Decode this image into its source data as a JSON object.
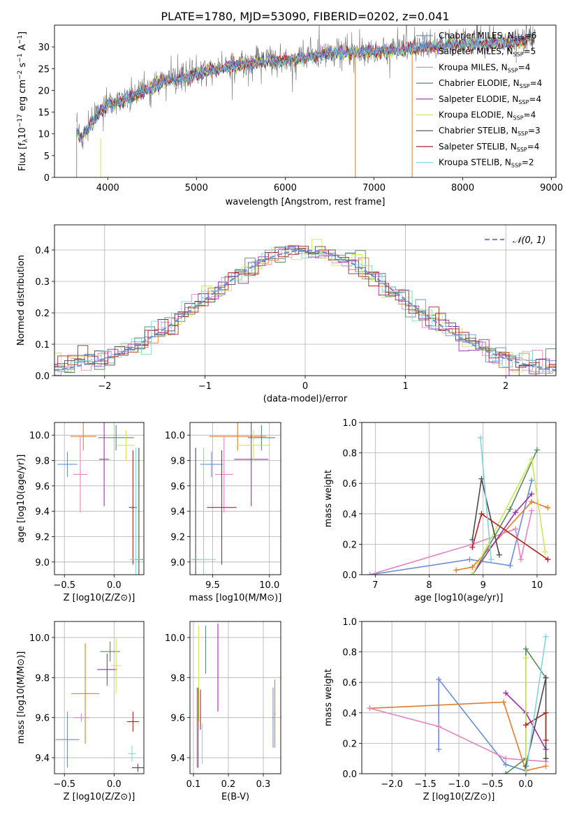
{
  "figure_title": "PLATE=1780, MJD=53090, FIBERID=0202, z=0.041",
  "colors": [
    "#6b8ed6",
    "#e07d2a",
    "#e284c0",
    "#5a8a62",
    "#9b2fae",
    "#cfe85a",
    "#4a4a4a",
    "#b22222",
    "#7fd6dc"
  ],
  "chart_data": [
    {
      "id": "spectrum",
      "type": "line",
      "title": "PLATE=1780, MJD=53090, FIBERID=0202, z=0.041",
      "xlabel": "wavelength [Angstrom, rest frame]",
      "ylabel": "Flux [f",
      "xlim": [
        3400,
        9050
      ],
      "ylim": [
        0,
        35
      ],
      "xticks": [
        "4000",
        "5000",
        "6000",
        "7000",
        "8000",
        "9000"
      ],
      "yticks": [
        "0",
        "5",
        "10",
        "15",
        "20",
        "25",
        "30"
      ],
      "legend_loc": "upper right",
      "legend": [
        {
          "pre": "Chabrier MILES, N",
          "post": "=6"
        },
        {
          "pre": "Salpeter MILES, N",
          "post": "=5"
        },
        {
          "pre": "Kroupa MILES, N",
          "post": "=4"
        },
        {
          "pre": "Chabrier ELODIE, N",
          "post": "=4"
        },
        {
          "pre": "Salpeter ELODIE, N",
          "post": "=4"
        },
        {
          "pre": "Kroupa ELODIE, N",
          "post": "=4"
        },
        {
          "pre": "Chabrier STELIB, N",
          "post": "=3"
        },
        {
          "pre": "Salpeter STELIB, N",
          "post": "=4"
        },
        {
          "pre": "Kroupa STELIB, N",
          "post": "=2"
        }
      ],
      "continuum": [
        [
          3650,
          11
        ],
        [
          3700,
          9
        ],
        [
          3800,
          12
        ],
        [
          3900,
          15
        ],
        [
          4000,
          17
        ],
        [
          4200,
          18
        ],
        [
          4400,
          20
        ],
        [
          4600,
          22
        ],
        [
          4800,
          23
        ],
        [
          5000,
          24
        ],
        [
          5200,
          25
        ],
        [
          5500,
          26
        ],
        [
          5800,
          27
        ],
        [
          6000,
          27
        ],
        [
          6300,
          28
        ],
        [
          6600,
          29
        ],
        [
          7000,
          29
        ],
        [
          7500,
          30
        ],
        [
          8000,
          31
        ],
        [
          8500,
          31
        ],
        [
          8800,
          32
        ]
      ]
    },
    {
      "id": "residuals",
      "type": "histogram",
      "xlabel": "(data-model)/error",
      "ylabel": "Normed distribution",
      "xlim": [
        -2.5,
        2.5
      ],
      "ylim": [
        0,
        0.48
      ],
      "xticks": [
        "−2",
        "−1",
        "0",
        "1",
        "2"
      ],
      "yticks": [
        "0.0",
        "0.1",
        "0.2",
        "0.3",
        "0.4"
      ],
      "legend": "𝒩(0, 1)",
      "legend_loc": "upper right",
      "bin_width": 0.1
    },
    {
      "id": "z-age",
      "type": "errorbar",
      "xlabel": "Z [log10(Z/Z⊙)]",
      "ylabel": "age [log10(age/yr)]",
      "xlim": [
        -0.6,
        0.3
      ],
      "ylim": [
        8.9,
        10.1
      ],
      "xticks": [
        "−0.5",
        "0.0"
      ],
      "yticks": [
        "9.0",
        "9.2",
        "9.4",
        "9.6",
        "9.8",
        "10.0"
      ],
      "points": [
        {
          "x": -0.47,
          "xerr": 0.1,
          "y": 9.77,
          "yerr": 0.1
        },
        {
          "x": -0.31,
          "xerr": 0.13,
          "y": 9.99,
          "yerr": 0.11
        },
        {
          "x": -0.34,
          "xerr": 0.07,
          "y": 9.69,
          "yerr": 0.3
        },
        {
          "x": 0.02,
          "xerr": 0.18,
          "y": 9.98,
          "yerr": 0.1
        },
        {
          "x": -0.1,
          "xerr": 0.05,
          "y": 9.81,
          "yerr": 0.37
        },
        {
          "x": 0.12,
          "xerr": 0.09,
          "y": 9.92,
          "yerr": 0.12
        },
        {
          "x": 0.25,
          "xerr": 0.04,
          "y": 9.02,
          "yerr": 0.88
        },
        {
          "x": 0.19,
          "xerr": 0.04,
          "y": 9.43,
          "yerr": 0.45
        },
        {
          "x": 0.22,
          "xerr": 0.06,
          "y": 9.02,
          "yerr": 0.88
        }
      ]
    },
    {
      "id": "mass-age",
      "type": "errorbar",
      "xlabel": "mass [log10(M/M⊙)]",
      "ylabel": "",
      "xlim": [
        9.3,
        10.1
      ],
      "ylim": [
        8.9,
        10.1
      ],
      "xticks": [
        "9.5",
        "10.0"
      ],
      "yticks": [
        "9.0",
        "9.2",
        "9.4",
        "9.6",
        "9.8",
        "10.0"
      ],
      "points": [
        {
          "x": 9.49,
          "xerr": 0.1,
          "y": 9.77,
          "yerr": 0.1
        },
        {
          "x": 9.72,
          "xerr": 0.25,
          "y": 9.99,
          "yerr": 0.11
        },
        {
          "x": 9.6,
          "xerr": 0.08,
          "y": 9.69,
          "yerr": 0.3
        },
        {
          "x": 9.93,
          "xerr": 0.12,
          "y": 9.98,
          "yerr": 0.1
        },
        {
          "x": 9.84,
          "xerr": 0.15,
          "y": 9.81,
          "yerr": 0.37
        },
        {
          "x": 9.86,
          "xerr": 0.15,
          "y": 9.92,
          "yerr": 0.12
        },
        {
          "x": 9.35,
          "xerr": 0.02,
          "y": 9.02,
          "yerr": 0.88
        },
        {
          "x": 9.58,
          "xerr": 0.13,
          "y": 9.43,
          "yerr": 0.45
        },
        {
          "x": 9.42,
          "xerr": 0.11,
          "y": 9.02,
          "yerr": 0.88
        }
      ]
    },
    {
      "id": "weights-age",
      "type": "line",
      "xlabel": "age [log10(age/yr)]",
      "ylabel": "mass weight",
      "xlim": [
        6.75,
        10.35
      ],
      "ylim": [
        0,
        1.0
      ],
      "xticks": [
        "7",
        "8",
        "9",
        "10"
      ],
      "yticks": [
        "0.0",
        "0.2",
        "0.4",
        "0.6",
        "0.8",
        "1.0"
      ],
      "series": [
        {
          "x": [
            6.9,
            8.75,
            9.5,
            9.9
          ],
          "y": [
            0.0,
            0.1,
            0.06,
            0.62
          ]
        },
        {
          "x": [
            8.5,
            8.8,
            9.9,
            10.2
          ],
          "y": [
            0.03,
            0.05,
            0.48,
            0.44
          ]
        },
        {
          "x": [
            6.9,
            8.8,
            9.6,
            9.7,
            9.9
          ],
          "y": [
            0.0,
            0.2,
            0.3,
            0.1,
            0.42
          ]
        },
        {
          "x": [
            8.8,
            9.5,
            10.0
          ],
          "y": [
            0.0,
            0.43,
            0.82
          ]
        },
        {
          "x": [
            8.8,
            9.6,
            9.9
          ],
          "y": [
            0.0,
            0.41,
            0.53
          ]
        },
        {
          "x": [
            8.8,
            9.9,
            10.15
          ],
          "y": [
            0.0,
            0.76,
            0.15
          ]
        },
        {
          "x": [
            8.8,
            8.97,
            9.3
          ],
          "y": [
            0.23,
            0.63,
            0.13
          ]
        },
        {
          "x": [
            8.8,
            8.97,
            10.2
          ],
          "y": [
            0.18,
            0.4,
            0.1
          ]
        },
        {
          "x": [
            8.95,
            9.15
          ],
          "y": [
            0.9,
            0.1
          ]
        }
      ]
    },
    {
      "id": "z-mass",
      "type": "errorbar",
      "xlabel": "Z [log10(Z/Z⊙)]",
      "ylabel": "mass [log10(M/M⊙)]",
      "xlim": [
        -0.6,
        0.3
      ],
      "ylim": [
        9.32,
        10.08
      ],
      "xticks": [
        "−0.5",
        "0.0"
      ],
      "yticks": [
        "9.4",
        "9.6",
        "9.8",
        "10.0"
      ],
      "points": [
        {
          "x": -0.47,
          "xerr": 0.12,
          "y": 9.49,
          "yerr": 0.14
        },
        {
          "x": -0.29,
          "xerr": 0.14,
          "y": 9.72,
          "yerr": 0.25
        },
        {
          "x": -0.33,
          "xerr": 0.08,
          "y": 9.6,
          "yerr": 0.02
        },
        {
          "x": -0.04,
          "xerr": 0.1,
          "y": 9.93,
          "yerr": 0.05
        },
        {
          "x": -0.07,
          "xerr": 0.1,
          "y": 9.84,
          "yerr": 0.08
        },
        {
          "x": 0.02,
          "xerr": 0.05,
          "y": 9.86,
          "yerr": 0.14
        },
        {
          "x": 0.24,
          "xerr": 0.06,
          "y": 9.35,
          "yerr": 0.02
        },
        {
          "x": 0.19,
          "xerr": 0.06,
          "y": 9.58,
          "yerr": 0.05
        },
        {
          "x": 0.18,
          "xerr": 0.04,
          "y": 9.42,
          "yerr": 0.04
        }
      ]
    },
    {
      "id": "ebv-mass",
      "type": "errorbar",
      "xlabel": "E(B-V)",
      "ylabel": "",
      "xlim": [
        0.09,
        0.35
      ],
      "ylim": [
        9.32,
        10.08
      ],
      "xticks": [
        "0.1",
        "0.2",
        "0.3"
      ],
      "yticks": [
        "9.4",
        "9.6",
        "9.8",
        "10.0"
      ],
      "points": [
        {
          "x": 0.328,
          "xerr": 0.002,
          "y": 9.6,
          "yerr": 0.15
        },
        {
          "x": 0.333,
          "xerr": 0.002,
          "y": 9.62,
          "yerr": 0.17
        },
        {
          "x": 0.11,
          "xerr": 0.001,
          "y": 9.55,
          "yerr": 0.2
        },
        {
          "x": 0.135,
          "xerr": 0.001,
          "y": 9.94,
          "yerr": 0.12
        },
        {
          "x": 0.17,
          "xerr": 0.001,
          "y": 9.85,
          "yerr": 0.22
        },
        {
          "x": 0.115,
          "xerr": 0.001,
          "y": 9.82,
          "yerr": 0.24
        },
        {
          "x": 0.113,
          "xerr": 0.001,
          "y": 9.55,
          "yerr": 0.2
        },
        {
          "x": 0.12,
          "xerr": 0.001,
          "y": 9.64,
          "yerr": 0.1
        },
        {
          "x": 0.125,
          "xerr": 0.001,
          "y": 9.47,
          "yerr": 0.1
        }
      ]
    },
    {
      "id": "weights-z",
      "type": "line",
      "xlabel": "Z [log10(Z/Z⊙)]",
      "ylabel": "mass weight",
      "xlim": [
        -2.45,
        0.45
      ],
      "ylim": [
        0,
        1.0
      ],
      "xticks": [
        "−2.0",
        "−1.5",
        "−1.0",
        "−0.5",
        "0.0"
      ],
      "yticks": [
        "0.0",
        "0.2",
        "0.4",
        "0.6",
        "0.8",
        "1.0"
      ],
      "series": [
        {
          "x": [
            -1.3,
            -1.3,
            -0.3,
            0.0
          ],
          "y": [
            0.16,
            0.62,
            0.06,
            0.02
          ]
        },
        {
          "x": [
            -2.33,
            -0.33,
            0.0,
            0.3
          ],
          "y": [
            0.43,
            0.47,
            0.02,
            0.05
          ]
        },
        {
          "x": [
            -2.33,
            -1.3,
            -0.3,
            0.3
          ],
          "y": [
            0.43,
            0.31,
            0.1,
            0.08
          ]
        },
        {
          "x": [
            -0.3,
            0.0,
            0.0,
            0.3
          ],
          "y": [
            0.0,
            0.1,
            0.82,
            0.63
          ]
        },
        {
          "x": [
            -0.3,
            0.0,
            0.3
          ],
          "y": [
            0.53,
            0.4,
            0.16
          ]
        },
        {
          "x": [
            0.0,
            0.0
          ],
          "y": [
            0.76,
            0.0
          ]
        },
        {
          "x": [
            0.0,
            0.3,
            0.3
          ],
          "y": [
            0.05,
            0.63,
            0.1
          ]
        },
        {
          "x": [
            0.0,
            0.3,
            0.3
          ],
          "y": [
            0.32,
            0.4,
            0.22
          ]
        },
        {
          "x": [
            0.0,
            0.3
          ],
          "y": [
            0.0,
            0.9
          ]
        }
      ]
    }
  ]
}
